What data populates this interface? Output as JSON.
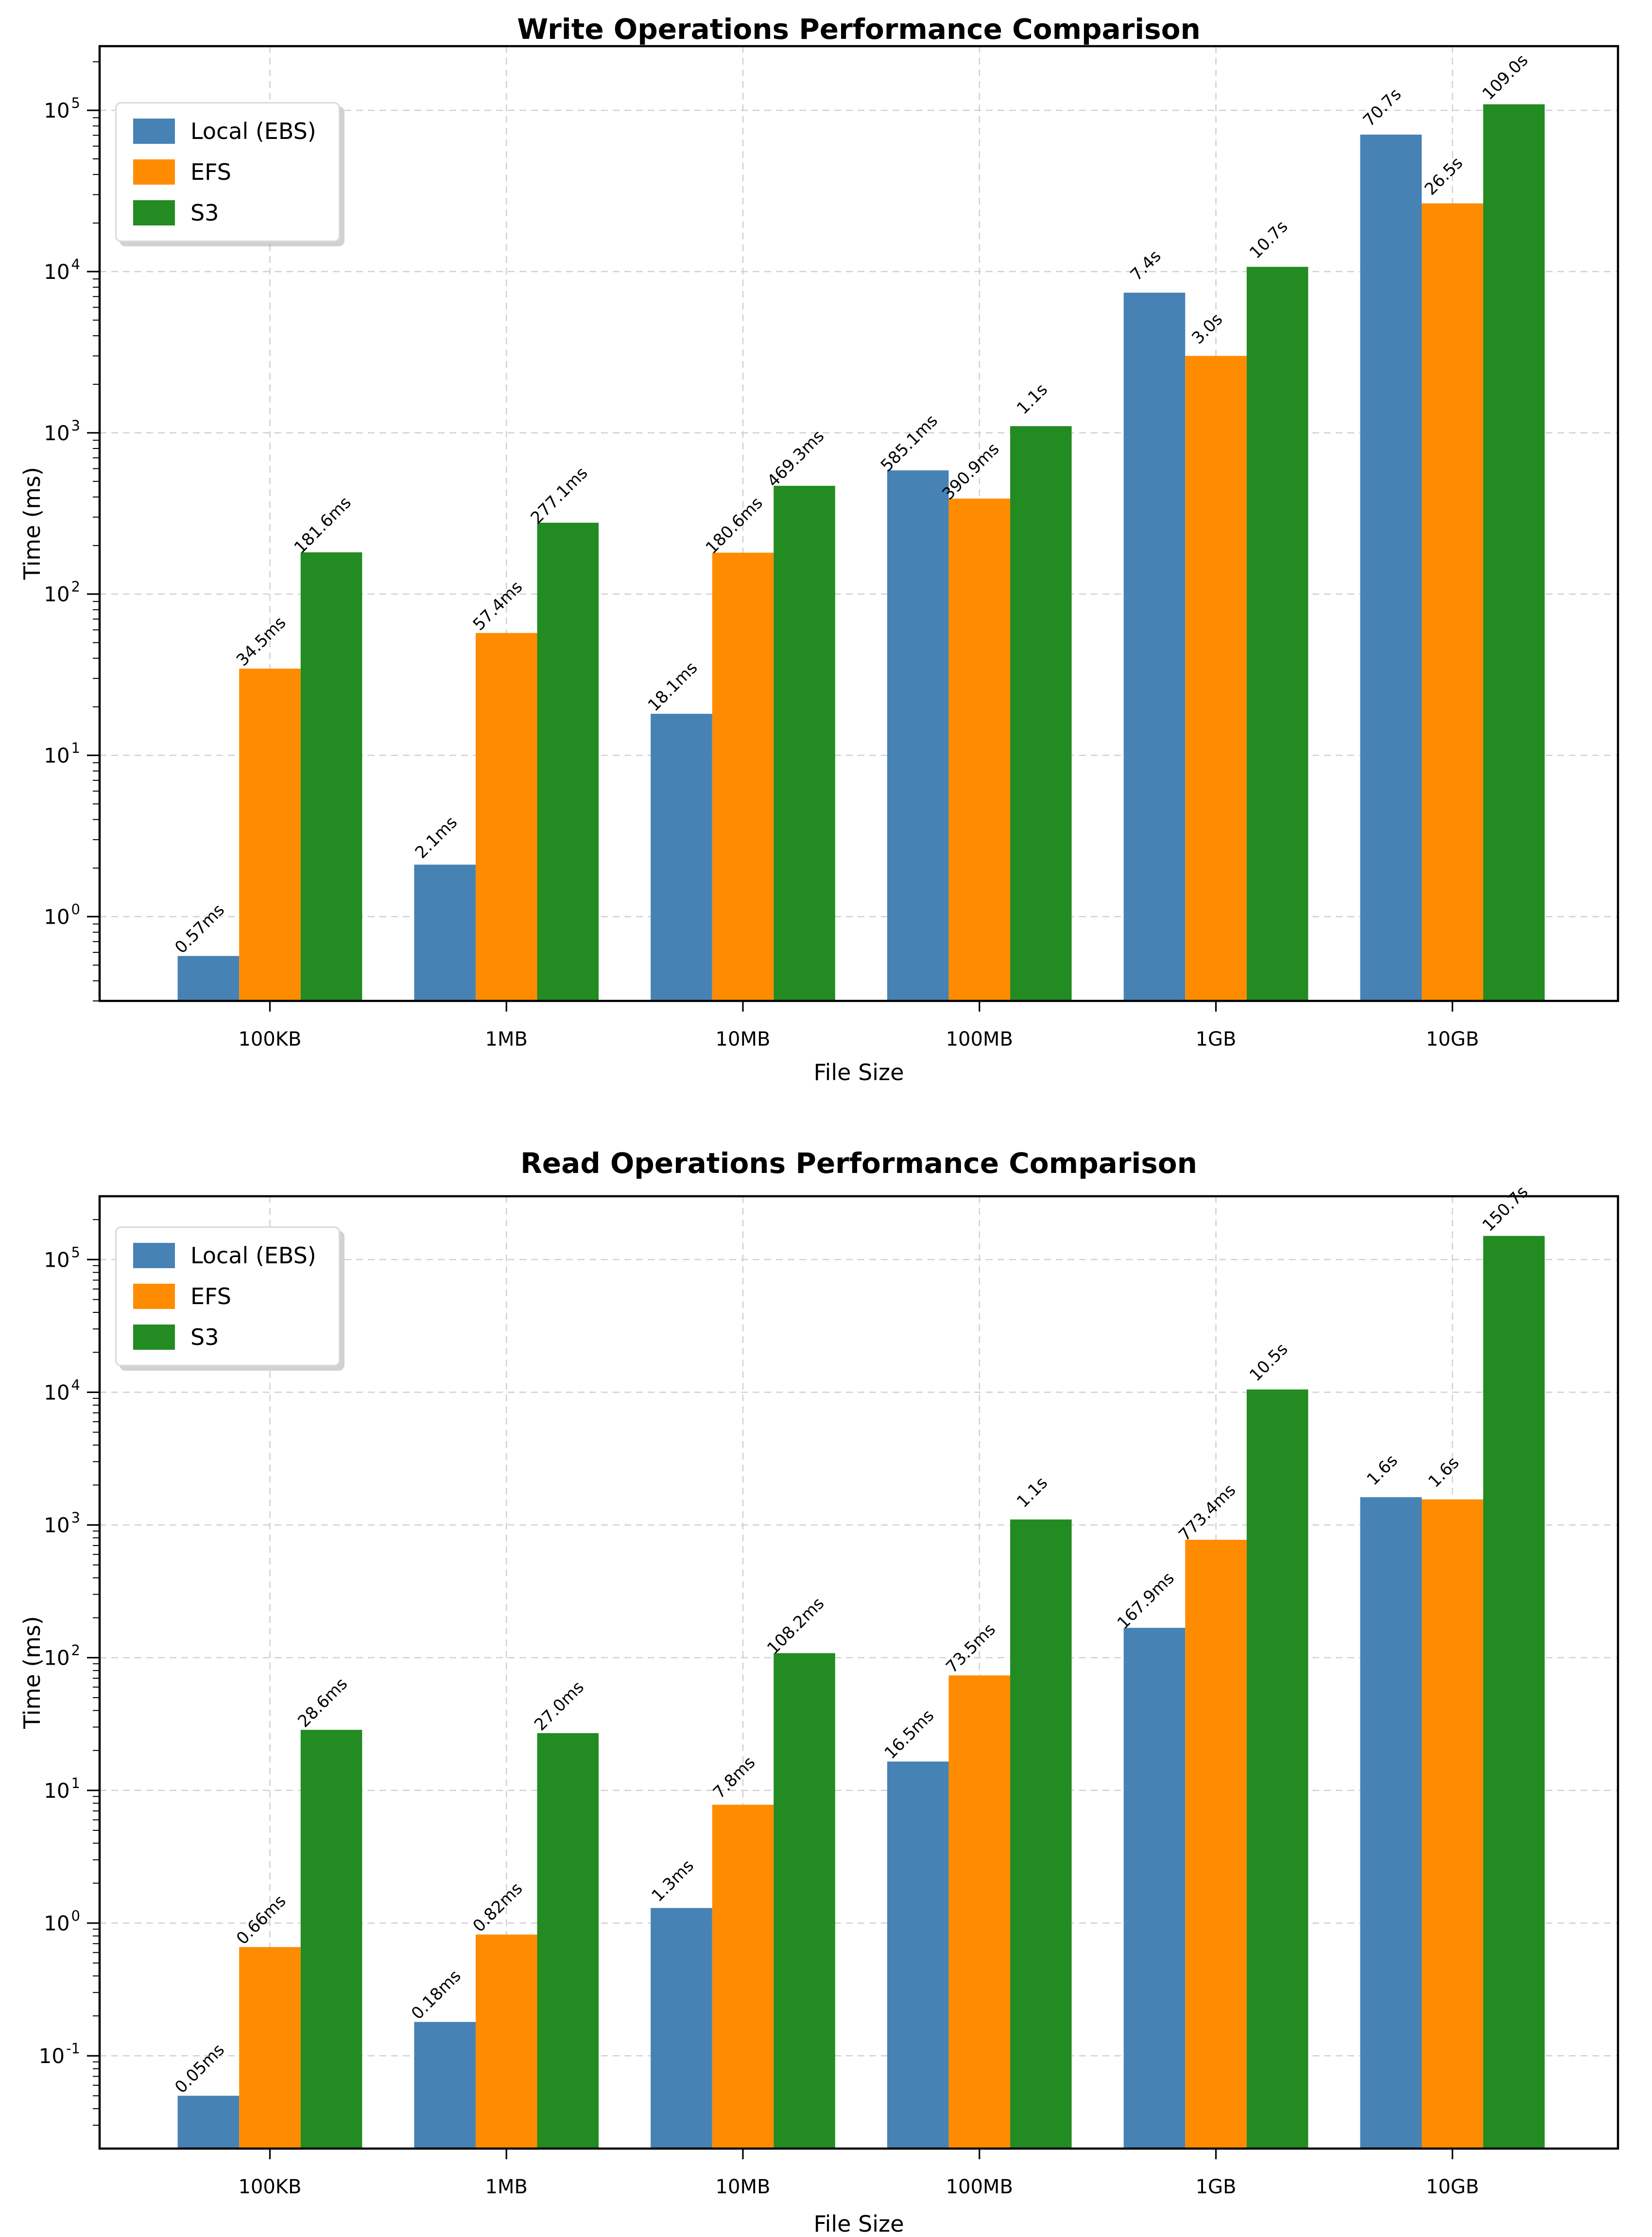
{
  "chart_data": [
    {
      "type": "bar",
      "title": "Write Operations Performance Comparison",
      "xlabel": "File Size",
      "ylabel": "Time (ms)",
      "yscale": "log",
      "ylim": [
        0.3,
        250000
      ],
      "grid": true,
      "legend_position": "upper left",
      "categories": [
        "100KB",
        "1MB",
        "10MB",
        "100MB",
        "1GB",
        "10GB"
      ],
      "ytick_exponents": [
        0,
        1,
        2,
        3,
        4,
        5
      ],
      "series": [
        {
          "name": "Local (EBS)",
          "color": "#4682B4",
          "values_ms": [
            0.57,
            2.1,
            18.1,
            585.1,
            7400,
            70700
          ],
          "labels": [
            "0.57ms",
            "2.1ms",
            "18.1ms",
            "585.1ms",
            "7.4s",
            "70.7s"
          ]
        },
        {
          "name": "EFS",
          "color": "#FF8C00",
          "values_ms": [
            34.5,
            57.4,
            180.6,
            390.9,
            3000,
            26500
          ],
          "labels": [
            "34.5ms",
            "57.4ms",
            "180.6ms",
            "390.9ms",
            "3.0s",
            "26.5s"
          ]
        },
        {
          "name": "S3",
          "color": "#228B22",
          "values_ms": [
            181.6,
            277.1,
            469.3,
            1100,
            10700,
            109000
          ],
          "labels": [
            "181.6ms",
            "277.1ms",
            "469.3ms",
            "1.1s",
            "10.7s",
            "109.0s"
          ]
        }
      ]
    },
    {
      "type": "bar",
      "title": "Read Operations Performance Comparison",
      "xlabel": "File Size",
      "ylabel": "Time (ms)",
      "yscale": "log",
      "ylim": [
        0.02,
        300000
      ],
      "grid": true,
      "legend_position": "upper left",
      "categories": [
        "100KB",
        "1MB",
        "10MB",
        "100MB",
        "1GB",
        "10GB"
      ],
      "ytick_exponents": [
        -1,
        0,
        1,
        2,
        3,
        4,
        5
      ],
      "series": [
        {
          "name": "Local (EBS)",
          "color": "#4682B4",
          "values_ms": [
            0.05,
            0.18,
            1.3,
            16.5,
            167.9,
            1620
          ],
          "labels": [
            "0.05ms",
            "0.18ms",
            "1.3ms",
            "16.5ms",
            "167.9ms",
            "1.6s"
          ]
        },
        {
          "name": "EFS",
          "color": "#FF8C00",
          "values_ms": [
            0.66,
            0.82,
            7.8,
            73.5,
            773.4,
            1560
          ],
          "labels": [
            "0.66ms",
            "0.82ms",
            "7.8ms",
            "73.5ms",
            "773.4ms",
            "1.6s"
          ]
        },
        {
          "name": "S3",
          "color": "#228B22",
          "values_ms": [
            28.6,
            27.0,
            108.2,
            1100,
            10500,
            150700
          ],
          "labels": [
            "28.6ms",
            "27.0ms",
            "108.2ms",
            "1.1s",
            "10.5s",
            "150.7s"
          ]
        }
      ]
    }
  ]
}
